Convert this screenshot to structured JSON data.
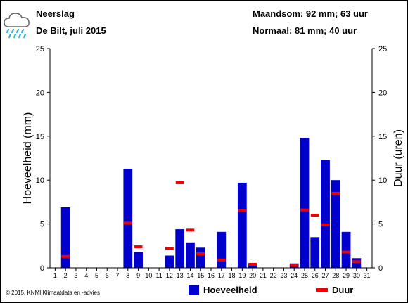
{
  "header": {
    "title": "Neerslag",
    "location": "De Bilt, juli 2015",
    "monthly_total": "Maandsom: 92 mm; 63 uur",
    "normal": "Normaal: 81 mm; 40 uur"
  },
  "footer": {
    "copyright": "© 2015, KNMI Klimaatdata en -advies"
  },
  "legend": {
    "amount_label": "Hoeveelheid",
    "duration_label": "Duur"
  },
  "icon": "rain-cloud-icon",
  "colors": {
    "bar": "#0000cc",
    "duration": "#ee0000",
    "icon": "#33aadd"
  },
  "chart_data": {
    "type": "bar",
    "x": [
      1,
      2,
      3,
      4,
      5,
      6,
      7,
      8,
      9,
      10,
      11,
      12,
      13,
      14,
      15,
      16,
      17,
      18,
      19,
      20,
      21,
      22,
      23,
      24,
      25,
      26,
      27,
      28,
      29,
      30,
      31
    ],
    "x_tick_labels": [
      "1",
      "2",
      "3",
      "4",
      "5",
      "6",
      "7",
      "8",
      "9",
      "10",
      "11",
      "12",
      "13",
      "14",
      "15",
      "16",
      "17",
      "18",
      "19",
      "20",
      "21",
      "22",
      "23",
      "24",
      "25",
      "26",
      "27",
      "28",
      "29",
      "30",
      "31"
    ],
    "ylabel_left": "Hoeveelheid (mm)",
    "ylabel_right": "Duur (uren)",
    "ylim": [
      0,
      25
    ],
    "y_ticks": [
      0,
      5,
      10,
      15,
      20,
      25
    ],
    "grid": false,
    "series": [
      {
        "name": "Hoeveelheid",
        "kind": "bar",
        "values": [
          0,
          6.9,
          0,
          0,
          0,
          0,
          0,
          11.3,
          1.8,
          0,
          0,
          1.4,
          4.4,
          2.9,
          2.3,
          0,
          4.1,
          0,
          9.7,
          0.5,
          0,
          0,
          0,
          0.5,
          14.8,
          3.5,
          12.3,
          10.0,
          4.1,
          1.1,
          0
        ]
      },
      {
        "name": "Duur",
        "kind": "marker",
        "values": [
          0,
          1.3,
          0,
          0,
          0,
          0,
          0,
          5.1,
          2.4,
          0,
          0,
          2.2,
          9.7,
          4.3,
          1.6,
          0,
          0.9,
          0,
          6.5,
          0.4,
          0,
          0,
          0,
          0.3,
          6.6,
          6.0,
          4.9,
          8.5,
          1.8,
          0.7,
          0
        ]
      }
    ]
  }
}
